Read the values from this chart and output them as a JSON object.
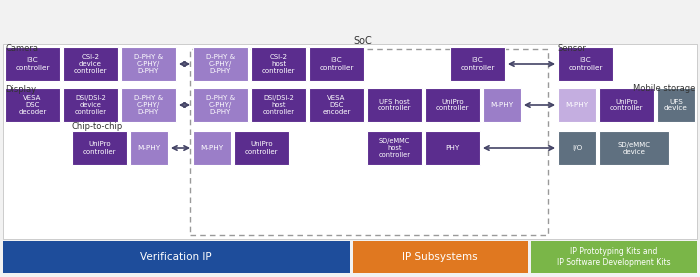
{
  "dark_purple": "#5b2d8e",
  "med_purple": "#9b7ec8",
  "light_purple": "#c4aee0",
  "dark_gray": "#5f7080",
  "blue_bar": "#1e4d9b",
  "orange_bar": "#e07820",
  "green_bar": "#7ab648",
  "bar_labels": [
    "Verification IP",
    "IP Subsystems",
    "IP Prototyping Kits and\nIP Software Development Kits"
  ],
  "soc_label": "SoC",
  "camera_label": "Camera",
  "display_label": "Display",
  "chip_label": "Chip-to-chip",
  "sensor_label": "Sensor",
  "mobile_label": "Mobile storage"
}
